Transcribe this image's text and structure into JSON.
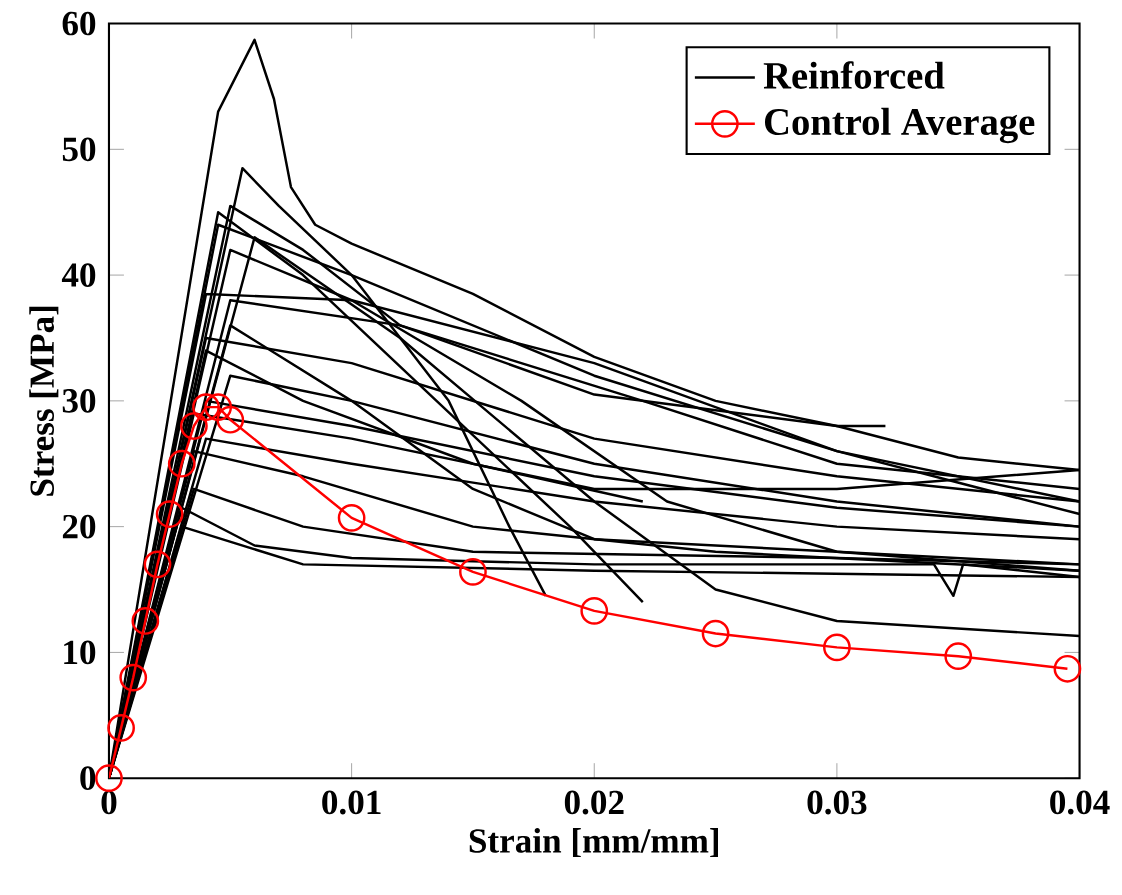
{
  "chart_data": {
    "type": "line",
    "xlabel": "Strain [mm/mm]",
    "ylabel": "Stress [MPa]",
    "xlim": [
      0,
      0.04
    ],
    "ylim": [
      0,
      60
    ],
    "xticks": [
      0,
      0.01,
      0.02,
      0.03,
      0.04
    ],
    "yticks": [
      0,
      10,
      20,
      30,
      40,
      50,
      60
    ],
    "grid": false,
    "legend": "top right",
    "line_style": "solid",
    "series": [
      {
        "name": "Reinforced",
        "color": "#000000",
        "marker": "none",
        "x": [
          0,
          0.0045,
          0.006,
          0.0068,
          0.0075,
          0.0085,
          0.01,
          0.015,
          0.02,
          0.025,
          0.03,
          0.035,
          0.04
        ],
        "values": [
          0,
          53,
          58.7,
          54,
          47,
          44,
          42.5,
          38.5,
          33.5,
          30,
          28,
          25.5,
          24.5
        ]
      },
      {
        "color": "#000000",
        "marker": "none",
        "x": [
          0,
          0.0055,
          0.007,
          0.01,
          0.014,
          0.0165,
          0.018
        ],
        "values": [
          0,
          48.5,
          45.5,
          40,
          30,
          20,
          14.5
        ]
      },
      {
        "color": "#000000",
        "marker": "none",
        "x": [
          0,
          0.0045,
          0.008,
          0.0135,
          0.019,
          0.022
        ],
        "values": [
          0,
          45,
          40,
          30,
          20,
          14
        ]
      },
      {
        "color": "#000000",
        "marker": "none",
        "x": [
          0,
          0.005,
          0.008,
          0.012,
          0.02,
          0.03,
          0.032
        ],
        "values": [
          0,
          45.5,
          42,
          36,
          30.5,
          28,
          28
        ]
      },
      {
        "color": "#000000",
        "marker": "none",
        "x": [
          0,
          0.0045,
          0.01,
          0.02,
          0.03,
          0.04
        ],
        "values": [
          0,
          44,
          40,
          32,
          26,
          22
        ]
      },
      {
        "color": "#000000",
        "marker": "none",
        "x": [
          0,
          0.004,
          0.01,
          0.02,
          0.03,
          0.04
        ],
        "values": [
          0,
          38.5,
          38,
          33,
          26,
          21
        ]
      },
      {
        "color": "#000000",
        "marker": "none",
        "x": [
          0,
          0.005,
          0.012,
          0.022,
          0.03,
          0.04
        ],
        "values": [
          0,
          38,
          36,
          30,
          25,
          23
        ]
      },
      {
        "color": "#000000",
        "marker": "none",
        "x": [
          0,
          0.004,
          0.01,
          0.02,
          0.03,
          0.04
        ],
        "values": [
          0,
          35,
          33,
          27,
          24,
          22
        ]
      },
      {
        "color": "#000000",
        "marker": "none",
        "x": [
          0,
          0.006,
          0.012,
          0.02,
          0.025,
          0.03,
          0.04
        ],
        "values": [
          0,
          43,
          35,
          22,
          15,
          12.5,
          11.3
        ]
      },
      {
        "color": "#000000",
        "marker": "none",
        "x": [
          0,
          0.005,
          0.01,
          0.02,
          0.03,
          0.04
        ],
        "values": [
          0,
          32,
          30,
          25,
          22,
          20
        ]
      },
      {
        "color": "#000000",
        "marker": "none",
        "x": [
          0,
          0.004,
          0.01,
          0.02,
          0.03,
          0.04
        ],
        "values": [
          0,
          30,
          28,
          24,
          21.5,
          20
        ]
      },
      {
        "color": "#000000",
        "marker": "none",
        "x": [
          0,
          0.004,
          0.01,
          0.02,
          0.03,
          0.04
        ],
        "values": [
          0,
          27,
          25,
          22,
          20,
          19
        ]
      },
      {
        "color": "#000000",
        "marker": "none",
        "x": [
          0,
          0.0035,
          0.008,
          0.015,
          0.025,
          0.04
        ],
        "values": [
          0,
          26,
          24,
          20,
          18,
          16.5
        ]
      },
      {
        "color": "#000000",
        "marker": "none",
        "x": [
          0,
          0.0035,
          0.008,
          0.015,
          0.03,
          0.04
        ],
        "values": [
          0,
          23,
          20,
          18,
          17.5,
          17
        ]
      },
      {
        "color": "#000000",
        "marker": "none",
        "x": [
          0,
          0.003,
          0.006,
          0.01,
          0.02,
          0.034,
          0.0348,
          0.0352,
          0.04
        ],
        "values": [
          0,
          21.5,
          18.5,
          17.5,
          17,
          17,
          14.5,
          17,
          16
        ]
      },
      {
        "color": "#000000",
        "marker": "none",
        "x": [
          0,
          0.003,
          0.008,
          0.02,
          0.04
        ],
        "values": [
          0,
          20,
          17,
          16.5,
          16
        ]
      },
      {
        "color": "#000000",
        "marker": "none",
        "x": [
          0,
          0.005,
          0.01,
          0.017,
          0.023,
          0.03,
          0.04
        ],
        "values": [
          0,
          42,
          38,
          30,
          22,
          18,
          16.5
        ]
      },
      {
        "color": "#000000",
        "marker": "none",
        "x": [
          0,
          0.004,
          0.008,
          0.015,
          0.022
        ],
        "values": [
          0,
          34,
          30,
          25,
          22
        ]
      },
      {
        "color": "#000000",
        "marker": "none",
        "x": [
          0,
          0.0035,
          0.01,
          0.02,
          0.03,
          0.04
        ],
        "values": [
          0,
          29,
          27,
          23,
          23,
          24.5
        ]
      },
      {
        "color": "#000000",
        "marker": "none",
        "x": [
          0,
          0.005,
          0.01,
          0.015,
          0.02,
          0.03,
          0.04
        ],
        "values": [
          0,
          36,
          30,
          23,
          19,
          18,
          17
        ]
      },
      {
        "name": "Control Average",
        "color": "#ff0000",
        "marker": "circle",
        "x": [
          0,
          0.0005,
          0.001,
          0.0015,
          0.002,
          0.0025,
          0.003,
          0.0035,
          0.004,
          0.0045,
          0.005,
          0.01,
          0.015,
          0.02,
          0.025,
          0.03,
          0.035,
          0.0395
        ],
        "values": [
          0,
          4,
          8,
          12.5,
          17,
          21,
          25,
          28,
          29.5,
          29.5,
          28.5,
          20.7,
          16.4,
          13.3,
          11.5,
          10.4,
          9.7,
          8.7
        ]
      }
    ]
  }
}
